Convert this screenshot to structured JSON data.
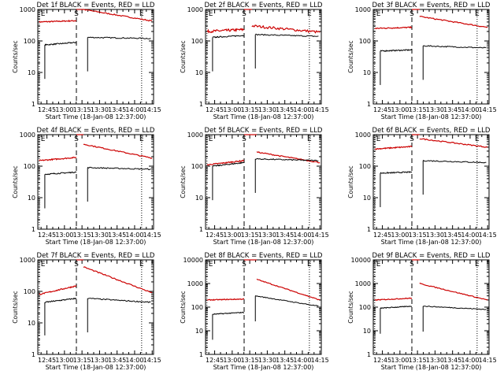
{
  "chart_data": [
    {
      "type": "line",
      "title": "Det 1f BLACK = Events, RED = LLD",
      "ylabel": "Counts/sec",
      "xlabel": "Start Time (18-Jan-08 12:37:00)",
      "y_scale": "log",
      "ylim": [
        1,
        1000
      ],
      "y_tick_labels": [
        "1",
        "10",
        "100",
        "1000"
      ],
      "x_tick_labels": [
        "12:45",
        "13:00",
        "13:15",
        "13:30",
        "13:45",
        "14:00",
        "14:15"
      ],
      "markers": [
        {
          "label": "E",
          "style": "dotted"
        },
        {
          "label": "S",
          "style": "dashed"
        },
        {
          "label": "E",
          "style": "dotted"
        }
      ],
      "series": [
        {
          "color": "#cc0000",
          "segments": [
            {
              "t": [
                12.64,
                13.17
              ],
              "v": [
                400,
                440
              ]
            },
            {
              "t": [
                13.17,
                13.27
              ],
              "v": [
                1000,
                1000
              ]
            },
            {
              "t": [
                13.27,
                14.25
              ],
              "v": [
                1000,
                430
              ]
            }
          ]
        },
        {
          "color": "#000000",
          "segments": [
            {
              "t": [
                12.72,
                13.17
              ],
              "v": [
                75,
                90
              ]
            },
            {
              "t": [
                13.33,
                14.23
              ],
              "v": [
                130,
                120
              ]
            }
          ]
        }
      ]
    },
    {
      "type": "line",
      "title": "Det 2f BLACK = Events, RED = LLD",
      "ylabel": "Counts/sec",
      "xlabel": "Start Time (18-Jan-08 12:37:00)",
      "y_scale": "log",
      "ylim": [
        1,
        1000
      ],
      "y_tick_labels": [
        "1",
        "10",
        "100",
        "1000"
      ],
      "x_tick_labels": [
        "12:45",
        "13:00",
        "13:15",
        "13:30",
        "13:45",
        "14:00",
        "14:15"
      ],
      "markers": [
        {
          "label": "E",
          "style": "dotted"
        },
        {
          "label": "S",
          "style": "dashed"
        },
        {
          "label": "E",
          "style": "dotted"
        }
      ],
      "series": [
        {
          "color": "#cc0000",
          "segments": [
            {
              "t": [
                12.64,
                13.17
              ],
              "v": [
                200,
                230
              ]
            },
            {
              "t": [
                13.17,
                13.28
              ],
              "v": [
                1000,
                1000
              ]
            },
            {
              "t": [
                13.28,
                14.25
              ],
              "v": [
                300,
                190
              ]
            }
          ]
        },
        {
          "color": "#000000",
          "segments": [
            {
              "t": [
                12.72,
                13.17
              ],
              "v": [
                130,
                150
              ]
            },
            {
              "t": [
                13.33,
                14.23
              ],
              "v": [
                160,
                140
              ]
            }
          ]
        }
      ]
    },
    {
      "type": "line",
      "title": "Det 3f BLACK = Events, RED = LLD",
      "ylabel": "Counts/sec",
      "xlabel": "Start Time (18-Jan-08 12:37:00)",
      "y_scale": "log",
      "ylim": [
        1,
        1000
      ],
      "y_tick_labels": [
        "1",
        "10",
        "100",
        "1000"
      ],
      "x_tick_labels": [
        "12:45",
        "13:00",
        "13:15",
        "13:30",
        "13:45",
        "14:00",
        "14:15"
      ],
      "markers": [
        {
          "label": "E",
          "style": "dotted"
        },
        {
          "label": "S",
          "style": "dashed"
        },
        {
          "label": "E",
          "style": "dotted"
        }
      ],
      "series": [
        {
          "color": "#cc0000",
          "segments": [
            {
              "t": [
                12.64,
                13.17
              ],
              "v": [
                250,
                270
              ]
            },
            {
              "t": [
                13.17,
                13.28
              ],
              "v": [
                1000,
                1000
              ]
            },
            {
              "t": [
                13.28,
                14.25
              ],
              "v": [
                600,
                270
              ]
            }
          ]
        },
        {
          "color": "#000000",
          "segments": [
            {
              "t": [
                12.72,
                13.17
              ],
              "v": [
                48,
                52
              ]
            },
            {
              "t": [
                13.33,
                14.23
              ],
              "v": [
                70,
                60
              ]
            }
          ]
        }
      ]
    },
    {
      "type": "line",
      "title": "Det 4f BLACK = Events, RED = LLD",
      "ylabel": "Counts/sec",
      "xlabel": "Start Time (18-Jan-08 12:37:00)",
      "y_scale": "log",
      "ylim": [
        1,
        1000
      ],
      "y_tick_labels": [
        "1",
        "10",
        "100",
        "1000"
      ],
      "x_tick_labels": [
        "12:45",
        "13:00",
        "13:15",
        "13:30",
        "13:45",
        "14:00",
        "14:15"
      ],
      "markers": [
        {
          "label": "E",
          "style": "dotted"
        },
        {
          "label": "S",
          "style": "dashed"
        },
        {
          "label": "E",
          "style": "dotted"
        }
      ],
      "series": [
        {
          "color": "#cc0000",
          "segments": [
            {
              "t": [
                12.64,
                13.17
              ],
              "v": [
                150,
                190
              ]
            },
            {
              "t": [
                13.17,
                13.27
              ],
              "v": [
                1000,
                1000
              ]
            },
            {
              "t": [
                13.27,
                14.25
              ],
              "v": [
                500,
                180
              ]
            }
          ]
        },
        {
          "color": "#000000",
          "segments": [
            {
              "t": [
                12.72,
                13.17
              ],
              "v": [
                55,
                65
              ]
            },
            {
              "t": [
                13.33,
                14.23
              ],
              "v": [
                90,
                80
              ]
            }
          ]
        }
      ]
    },
    {
      "type": "line",
      "title": "Det 5f BLACK = Events, RED = LLD",
      "ylabel": "Counts/sec",
      "xlabel": "Start Time (18-Jan-08 12:37:00)",
      "y_scale": "log",
      "ylim": [
        1,
        1000
      ],
      "y_tick_labels": [
        "1",
        "10",
        "100",
        "1000"
      ],
      "x_tick_labels": [
        "12:45",
        "13:00",
        "13:15",
        "13:30",
        "13:45",
        "14:00",
        "14:15"
      ],
      "markers": [
        {
          "label": "E",
          "style": "dotted"
        },
        {
          "label": "S",
          "style": "dashed"
        },
        {
          "label": "E",
          "style": "dotted"
        }
      ],
      "series": [
        {
          "color": "#cc0000",
          "segments": [
            {
              "t": [
                12.64,
                13.17
              ],
              "v": [
                110,
                150
              ]
            },
            {
              "t": [
                13.17,
                13.35
              ],
              "v": [
                1000,
                1000
              ]
            },
            {
              "t": [
                13.35,
                14.25
              ],
              "v": [
                280,
                130
              ]
            }
          ]
        },
        {
          "color": "#000000",
          "segments": [
            {
              "t": [
                12.72,
                13.17
              ],
              "v": [
                100,
                130
              ]
            },
            {
              "t": [
                13.33,
                14.23
              ],
              "v": [
                170,
                150
              ]
            }
          ]
        }
      ]
    },
    {
      "type": "line",
      "title": "Det 6f BLACK = Events, RED = LLD",
      "ylabel": "Counts/sec",
      "xlabel": "Start Time (18-Jan-08 12:37:00)",
      "y_scale": "log",
      "ylim": [
        1,
        1000
      ],
      "y_tick_labels": [
        "1",
        "10",
        "100",
        "1000"
      ],
      "x_tick_labels": [
        "12:45",
        "13:00",
        "13:15",
        "13:30",
        "13:45",
        "14:00",
        "14:15"
      ],
      "markers": [
        {
          "label": "E",
          "style": "dotted"
        },
        {
          "label": "S",
          "style": "dashed"
        },
        {
          "label": "E",
          "style": "dotted"
        }
      ],
      "series": [
        {
          "color": "#cc0000",
          "segments": [
            {
              "t": [
                12.64,
                13.17
              ],
              "v": [
                350,
                420
              ]
            },
            {
              "t": [
                13.17,
                13.28
              ],
              "v": [
                1000,
                1000
              ]
            },
            {
              "t": [
                13.28,
                14.25
              ],
              "v": [
                750,
                400
              ]
            }
          ]
        },
        {
          "color": "#000000",
          "segments": [
            {
              "t": [
                12.72,
                13.17
              ],
              "v": [
                60,
                65
              ]
            },
            {
              "t": [
                13.33,
                14.23
              ],
              "v": [
                150,
                130
              ]
            }
          ]
        }
      ]
    },
    {
      "type": "line",
      "title": "Det 7f BLACK = Events, RED = LLD",
      "ylabel": "Counts/sec",
      "xlabel": "Start Time (18-Jan-08 12:37:00)",
      "y_scale": "log",
      "ylim": [
        1,
        1000
      ],
      "y_tick_labels": [
        "1",
        "10",
        "100",
        "1000"
      ],
      "x_tick_labels": [
        "12:45",
        "13:00",
        "13:15",
        "13:30",
        "13:45",
        "14:00",
        "14:15"
      ],
      "markers": [
        {
          "label": "E",
          "style": "dotted"
        },
        {
          "label": "S",
          "style": "dashed"
        },
        {
          "label": "E",
          "style": "dotted"
        }
      ],
      "series": [
        {
          "color": "#cc0000",
          "segments": [
            {
              "t": [
                12.64,
                13.17
              ],
              "v": [
                80,
                150
              ]
            },
            {
              "t": [
                13.17,
                13.27
              ],
              "v": [
                1000,
                1000
              ]
            },
            {
              "t": [
                13.27,
                14.25
              ],
              "v": [
                600,
                90
              ]
            }
          ]
        },
        {
          "color": "#000000",
          "segments": [
            {
              "t": [
                12.72,
                13.17
              ],
              "v": [
                45,
                60
              ]
            },
            {
              "t": [
                13.33,
                14.23
              ],
              "v": [
                60,
                45
              ]
            }
          ]
        }
      ]
    },
    {
      "type": "line",
      "title": "Det 8f BLACK = Events, RED = LLD",
      "ylabel": "Counts/sec",
      "xlabel": "Start Time (18-Jan-08 12:37:00)",
      "y_scale": "log",
      "ylim": [
        1,
        10000
      ],
      "y_tick_labels": [
        "1",
        "10",
        "100",
        "1000",
        "10000"
      ],
      "x_tick_labels": [
        "12:45",
        "13:00",
        "13:15",
        "13:30",
        "13:45",
        "14:00",
        "14:15"
      ],
      "markers": [
        {
          "label": "E",
          "style": "dotted"
        },
        {
          "label": "S",
          "style": "dashed"
        },
        {
          "label": "E",
          "style": "dotted"
        }
      ],
      "series": [
        {
          "color": "#cc0000",
          "segments": [
            {
              "t": [
                12.64,
                13.17
              ],
              "v": [
                200,
                220
              ]
            },
            {
              "t": [
                13.17,
                13.35
              ],
              "v": [
                10000,
                10000
              ]
            },
            {
              "t": [
                13.35,
                14.25
              ],
              "v": [
                1500,
                200
              ]
            }
          ]
        },
        {
          "color": "#000000",
          "segments": [
            {
              "t": [
                12.72,
                13.17
              ],
              "v": [
                50,
                60
              ]
            },
            {
              "t": [
                13.33,
                14.23
              ],
              "v": [
                300,
                110
              ]
            }
          ]
        }
      ]
    },
    {
      "type": "line",
      "title": "Det 9f BLACK = Events, RED = LLD",
      "ylabel": "Counts/sec",
      "xlabel": "Start Time (18-Jan-08 12:37:00)",
      "y_scale": "log",
      "ylim": [
        1,
        10000
      ],
      "y_tick_labels": [
        "1",
        "10",
        "100",
        "1000",
        "10000"
      ],
      "x_tick_labels": [
        "12:45",
        "13:00",
        "13:15",
        "13:30",
        "13:45",
        "14:00",
        "14:15"
      ],
      "markers": [
        {
          "label": "E",
          "style": "dotted"
        },
        {
          "label": "S",
          "style": "dashed"
        },
        {
          "label": "E",
          "style": "dotted"
        }
      ],
      "series": [
        {
          "color": "#cc0000",
          "segments": [
            {
              "t": [
                12.64,
                13.17
              ],
              "v": [
                200,
                240
              ]
            },
            {
              "t": [
                13.17,
                13.28
              ],
              "v": [
                10000,
                10000
              ]
            },
            {
              "t": [
                13.28,
                14.25
              ],
              "v": [
                1000,
                200
              ]
            }
          ]
        },
        {
          "color": "#000000",
          "segments": [
            {
              "t": [
                12.72,
                13.17
              ],
              "v": [
                90,
                110
              ]
            },
            {
              "t": [
                13.33,
                14.23
              ],
              "v": [
                110,
                80
              ]
            }
          ]
        }
      ]
    }
  ]
}
